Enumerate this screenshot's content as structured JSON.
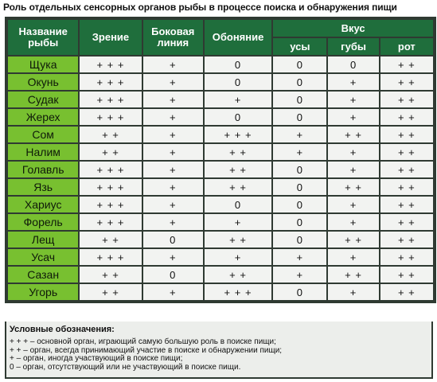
{
  "title": "Роль отдельных сенсорных органов рыбы в процессе поиска и обнаружения пищи",
  "headers": {
    "fish": "Название рыбы",
    "vision": "Зрение",
    "lateral_line": "Боковая линия",
    "smell": "Обоняние",
    "taste": "Вкус",
    "taste_sub": [
      "усы",
      "губы",
      "рот"
    ]
  },
  "rows": [
    {
      "fish": "Щука",
      "vals": [
        "+ + +",
        "+",
        "0",
        "0",
        "0",
        "+ +"
      ]
    },
    {
      "fish": "Окунь",
      "vals": [
        "+ + +",
        "+",
        "0",
        "0",
        "+",
        "+ +"
      ]
    },
    {
      "fish": "Судак",
      "vals": [
        "+ + +",
        "+",
        "+",
        "0",
        "+",
        "+ +"
      ]
    },
    {
      "fish": "Жерех",
      "vals": [
        "+ + +",
        "+",
        "0",
        "0",
        "+",
        "+ +"
      ]
    },
    {
      "fish": "Сом",
      "vals": [
        "+ +",
        "+",
        "+ + +",
        "+",
        "+ +",
        "+ +"
      ]
    },
    {
      "fish": "Налим",
      "vals": [
        "+ +",
        "+",
        "+ +",
        "+",
        "+",
        "+ +"
      ]
    },
    {
      "fish": "Голавль",
      "vals": [
        "+ + +",
        "+",
        "+ +",
        "0",
        "+",
        "+ +"
      ]
    },
    {
      "fish": "Язь",
      "vals": [
        "+ + +",
        "+",
        "+ +",
        "0",
        "+ +",
        "+ +"
      ]
    },
    {
      "fish": "Хариус",
      "vals": [
        "+ + +",
        "+",
        "0",
        "0",
        "+",
        "+ +"
      ]
    },
    {
      "fish": "Форель",
      "vals": [
        "+ + +",
        "+",
        "+",
        "0",
        "+",
        "+ +"
      ]
    },
    {
      "fish": "Лещ",
      "vals": [
        "+ +",
        "0",
        "+ +",
        "0",
        "+ +",
        "+ +"
      ]
    },
    {
      "fish": "Усач",
      "vals": [
        "+ + +",
        "+",
        "+",
        "+",
        "+",
        "+ +"
      ]
    },
    {
      "fish": "Сазан",
      "vals": [
        "+ +",
        "0",
        "+ +",
        "+",
        "+ +",
        "+ +"
      ]
    },
    {
      "fish": "Угорь",
      "vals": [
        "+ +",
        "+",
        "+ + +",
        "0",
        "+",
        "+ +"
      ]
    }
  ],
  "legend": {
    "title": "Условные обозначения:",
    "items": [
      "+ + + – основной орган, играющий самую большую роль в поиске пищи;",
      "+ + – орган, всегда принимающий участие в поиске и обнаружении пищи;",
      "+ – орган, иногда участвующий в поиске пищи;",
      "0 – орган, отсутствующий или не участвующий в поиске пищи."
    ]
  }
}
